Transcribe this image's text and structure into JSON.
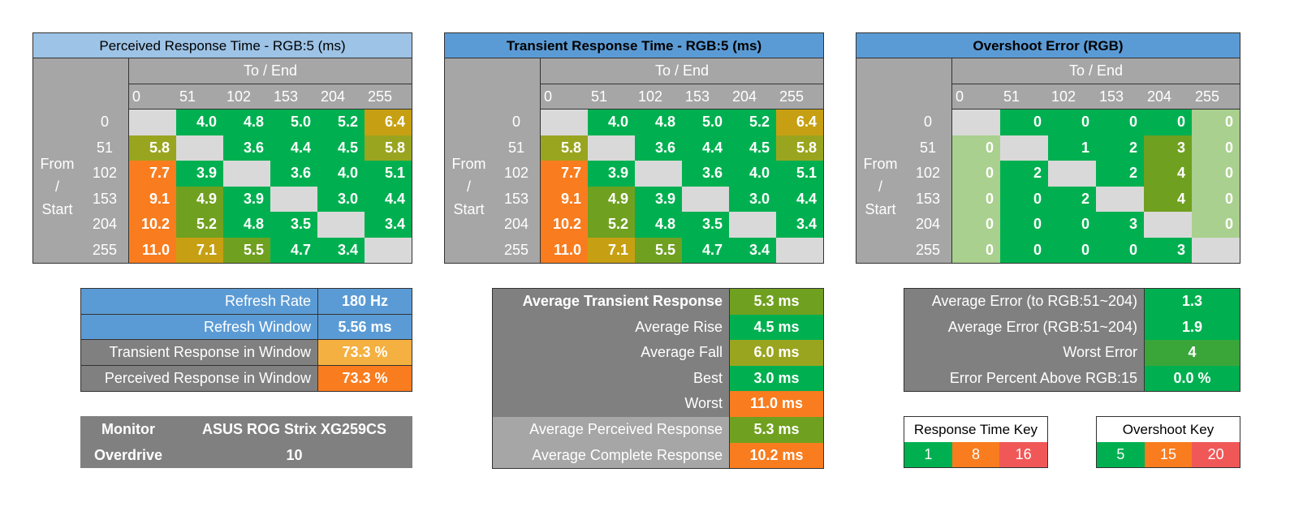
{
  "colors": {
    "diag": "#d9d9d9",
    "green": "#00b050",
    "lightgreen": "#a9d08e",
    "olive": "#70a020",
    "khaki": "#9aa51f",
    "amber": "#c6a012",
    "orange_light": "#f4b040",
    "orange": "#f97c1e",
    "red_key": "#f05858"
  },
  "axes": {
    "to_label": "To / End",
    "from_label_lines": [
      "From",
      "/",
      "Start"
    ],
    "levels": [
      "0",
      "51",
      "102",
      "153",
      "204",
      "255"
    ]
  },
  "perceived": {
    "title": "Perceived Response Time - RGB:5 (ms)",
    "rows": [
      [
        "",
        "4.0",
        "4.8",
        "5.0",
        "5.2",
        "6.4"
      ],
      [
        "5.8",
        "",
        "3.6",
        "4.4",
        "4.5",
        "5.8"
      ],
      [
        "7.7",
        "3.9",
        "",
        "3.6",
        "4.0",
        "5.1"
      ],
      [
        "9.1",
        "4.9",
        "3.9",
        "",
        "3.0",
        "4.4"
      ],
      [
        "10.2",
        "5.2",
        "4.8",
        "3.5",
        "",
        "3.4"
      ],
      [
        "11.0",
        "7.1",
        "5.5",
        "4.7",
        "3.4",
        ""
      ]
    ],
    "colors": [
      [
        "diag",
        "green",
        "green",
        "green",
        "green",
        "amber"
      ],
      [
        "khaki",
        "diag",
        "green",
        "green",
        "green",
        "khaki"
      ],
      [
        "orange",
        "green",
        "diag",
        "green",
        "green",
        "green"
      ],
      [
        "orange",
        "olive",
        "green",
        "diag",
        "green",
        "green"
      ],
      [
        "orange",
        "olive",
        "green",
        "green",
        "diag",
        "green"
      ],
      [
        "orange",
        "amber",
        "olive",
        "green",
        "green",
        "diag"
      ]
    ]
  },
  "transient": {
    "title": "Transient Response Time - RGB:5 (ms)",
    "rows": [
      [
        "",
        "4.0",
        "4.8",
        "5.0",
        "5.2",
        "6.4"
      ],
      [
        "5.8",
        "",
        "3.6",
        "4.4",
        "4.5",
        "5.8"
      ],
      [
        "7.7",
        "3.9",
        "",
        "3.6",
        "4.0",
        "5.1"
      ],
      [
        "9.1",
        "4.9",
        "3.9",
        "",
        "3.0",
        "4.4"
      ],
      [
        "10.2",
        "5.2",
        "4.8",
        "3.5",
        "",
        "3.4"
      ],
      [
        "11.0",
        "7.1",
        "5.5",
        "4.7",
        "3.4",
        ""
      ]
    ],
    "colors": [
      [
        "diag",
        "green",
        "green",
        "green",
        "green",
        "amber"
      ],
      [
        "khaki",
        "diag",
        "green",
        "green",
        "green",
        "khaki"
      ],
      [
        "orange",
        "green",
        "diag",
        "green",
        "green",
        "green"
      ],
      [
        "orange",
        "olive",
        "green",
        "diag",
        "green",
        "green"
      ],
      [
        "orange",
        "olive",
        "green",
        "green",
        "diag",
        "green"
      ],
      [
        "orange",
        "amber",
        "olive",
        "green",
        "green",
        "diag"
      ]
    ]
  },
  "overshoot": {
    "title": "Overshoot Error (RGB)",
    "rows": [
      [
        "",
        "0",
        "0",
        "0",
        "0",
        "0"
      ],
      [
        "0",
        "",
        "1",
        "2",
        "3",
        "0"
      ],
      [
        "0",
        "2",
        "",
        "2",
        "4",
        "0"
      ],
      [
        "0",
        "0",
        "2",
        "",
        "4",
        "0"
      ],
      [
        "0",
        "0",
        "0",
        "3",
        "",
        "0"
      ],
      [
        "0",
        "0",
        "0",
        "0",
        "3",
        ""
      ]
    ],
    "colors": [
      [
        "diag",
        "green",
        "green",
        "green",
        "green",
        "lightgreen"
      ],
      [
        "lightgreen",
        "diag",
        "green",
        "green",
        "olive",
        "lightgreen"
      ],
      [
        "lightgreen",
        "green",
        "diag",
        "green",
        "olive",
        "lightgreen"
      ],
      [
        "lightgreen",
        "green",
        "green",
        "diag",
        "olive",
        "lightgreen"
      ],
      [
        "lightgreen",
        "green",
        "green",
        "green",
        "diag",
        "lightgreen"
      ],
      [
        "lightgreen",
        "green",
        "green",
        "green",
        "green",
        "diag"
      ]
    ]
  },
  "refresh_summary": [
    {
      "label": "Refresh Rate",
      "value": "180 Hz",
      "label_bg": "#5b9bd5",
      "value_bg": "#5b9bd5"
    },
    {
      "label": "Refresh Window",
      "value": "5.56 ms",
      "label_bg": "#5b9bd5",
      "value_bg": "#5b9bd5"
    },
    {
      "label": "Transient Response in Window",
      "value": "73.3 %",
      "label_bg": "#808080",
      "value_bg": "#f4b040"
    },
    {
      "label": "Perceived Response in Window",
      "value": "73.3 %",
      "label_bg": "#808080",
      "value_bg": "#f97c1e"
    }
  ],
  "monitor": {
    "monitor_label": "Monitor",
    "monitor_value": "ASUS ROG Strix XG259CS",
    "overdrive_label": "Overdrive",
    "overdrive_value": "10"
  },
  "transient_summary": [
    {
      "label": "Average Transient Response",
      "value": "5.3 ms",
      "bold": true,
      "value_bg": "#70a020",
      "label_bg": "#808080"
    },
    {
      "label": "Average Rise",
      "value": "4.5 ms",
      "bold": false,
      "value_bg": "#00b050",
      "label_bg": "#808080"
    },
    {
      "label": "Average Fall",
      "value": "6.0 ms",
      "bold": false,
      "value_bg": "#9aa51f",
      "label_bg": "#808080"
    },
    {
      "label": "Best",
      "value": "3.0 ms",
      "bold": false,
      "value_bg": "#00b050",
      "label_bg": "#808080"
    },
    {
      "label": "Worst",
      "value": "11.0 ms",
      "bold": false,
      "value_bg": "#f97c1e",
      "label_bg": "#808080"
    },
    {
      "label": "Average Perceived Response",
      "value": "5.3 ms",
      "bold": false,
      "value_bg": "#70a020",
      "label_bg": "#a6a6a6"
    },
    {
      "label": "Average Complete Response",
      "value": "10.2 ms",
      "bold": false,
      "value_bg": "#f97c1e",
      "label_bg": "#a6a6a6"
    }
  ],
  "error_summary": [
    {
      "label": "Average Error (to RGB:51~204)",
      "value": "1.3",
      "value_bg": "#00b050"
    },
    {
      "label": "Average Error (RGB:51~204)",
      "value": "1.9",
      "value_bg": "#00b050"
    },
    {
      "label": "Worst Error",
      "value": "4",
      "value_bg": "#3aa63a"
    },
    {
      "label": "Error Percent Above RGB:15",
      "value": "0.0 %",
      "value_bg": "#00b050"
    }
  ],
  "response_key": {
    "title": "Response Time Key",
    "items": [
      {
        "label": "1",
        "color": "#00b050"
      },
      {
        "label": "8",
        "color": "#f97c1e"
      },
      {
        "label": "16",
        "color": "#f05858"
      }
    ]
  },
  "overshoot_key": {
    "title": "Overshoot Key",
    "items": [
      {
        "label": "5",
        "color": "#00b050"
      },
      {
        "label": "15",
        "color": "#f97c1e"
      },
      {
        "label": "20",
        "color": "#f05858"
      }
    ]
  }
}
